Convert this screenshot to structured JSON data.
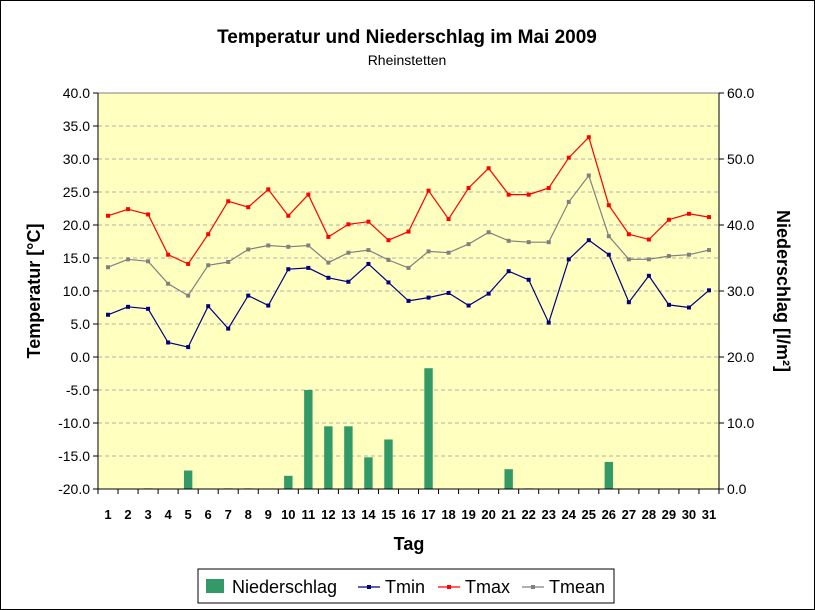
{
  "chart_data": {
    "type": "line",
    "title": "Temperatur und Niederschlag im Mai 2009",
    "subtitle": "Rheinstetten",
    "xlabel": "Tag",
    "ylabel_left": "Temperatur [°C]",
    "ylabel_right": "Niederschlag [l/m²]",
    "categories": [
      "1",
      "2",
      "3",
      "4",
      "5",
      "6",
      "7",
      "8",
      "9",
      "10",
      "11",
      "12",
      "13",
      "14",
      "15",
      "16",
      "17",
      "18",
      "19",
      "20",
      "21",
      "22",
      "23",
      "24",
      "25",
      "26",
      "27",
      "28",
      "29",
      "30",
      "31"
    ],
    "y_left": {
      "min": -20,
      "max": 40,
      "step": 5,
      "ticks": [
        "40.0",
        "35.0",
        "30.0",
        "25.0",
        "20.0",
        "15.0",
        "10.0",
        "5.0",
        "0.0",
        "-5.0",
        "-10.0",
        "-15.0",
        "-20.0"
      ]
    },
    "y_right": {
      "min": 0,
      "max": 60,
      "step": 10,
      "ticks": [
        "60.0",
        "50.0",
        "40.0",
        "30.0",
        "20.0",
        "10.0",
        "0.0"
      ]
    },
    "grid": true,
    "legend_position": "bottom",
    "series": [
      {
        "name": "Niederschlag",
        "kind": "bar",
        "axis": "right",
        "color": "#339966",
        "values": [
          0,
          0,
          0.1,
          0,
          2.8,
          0,
          0.1,
          0.1,
          0,
          2,
          15,
          9.5,
          9.5,
          4.8,
          7.5,
          0,
          18.3,
          0,
          0,
          0,
          3,
          0.1,
          0,
          0,
          0,
          4.1,
          0,
          0,
          0,
          0,
          0
        ]
      },
      {
        "name": "Tmin",
        "kind": "line",
        "axis": "left",
        "color": "#000080",
        "values": [
          6.4,
          7.6,
          7.3,
          2.2,
          1.5,
          7.7,
          4.3,
          9.3,
          7.8,
          13.3,
          13.5,
          12.0,
          11.4,
          14.1,
          11.3,
          8.5,
          9.0,
          9.7,
          7.8,
          9.6,
          13.0,
          11.7,
          5.2,
          14.8,
          17.7,
          15.5,
          8.3,
          12.3,
          7.9,
          7.5,
          10.1
        ]
      },
      {
        "name": "Tmax",
        "kind": "line",
        "axis": "left",
        "color": "#ff0000",
        "values": [
          21.4,
          22.4,
          21.6,
          15.5,
          14.1,
          18.6,
          23.6,
          22.7,
          25.4,
          21.4,
          24.6,
          18.2,
          20.1,
          20.5,
          17.7,
          19.0,
          25.2,
          20.9,
          25.6,
          28.6,
          24.6,
          24.6,
          25.6,
          30.2,
          33.3,
          23.0,
          18.6,
          17.8,
          20.8,
          21.7,
          21.2
        ]
      },
      {
        "name": "Tmean",
        "kind": "line",
        "axis": "left",
        "color": "#808080",
        "values": [
          13.6,
          14.8,
          14.5,
          11.1,
          9.3,
          13.9,
          14.4,
          16.3,
          16.9,
          16.7,
          16.9,
          14.3,
          15.8,
          16.2,
          14.7,
          13.5,
          16.0,
          15.8,
          17.1,
          18.9,
          17.6,
          17.4,
          17.4,
          23.5,
          27.5,
          18.3,
          14.8,
          14.8,
          15.3,
          15.5,
          16.2
        ]
      }
    ],
    "colors": {
      "plot_bg": "#ffffc0",
      "grid": "#b0b0b0",
      "plot_border": "#808080"
    }
  }
}
